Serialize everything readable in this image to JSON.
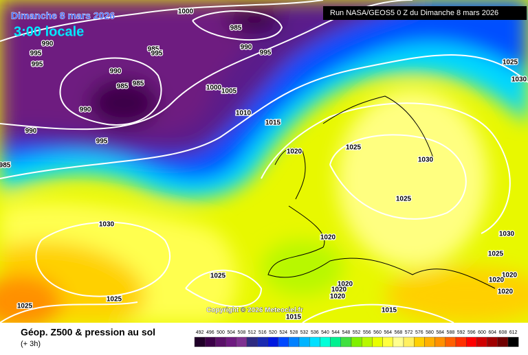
{
  "header": {
    "date": "Dimanche 8 mars 2026",
    "time": "3:00 locale",
    "run": "Run NASA/GEOS5 0 Z du Dimanche 8 mars 2026"
  },
  "isobar_labels": [
    "1000",
    "985",
    "990",
    "995",
    "985",
    "995",
    "990",
    "995",
    "995",
    "990",
    "985",
    "985",
    "1000",
    "1005",
    "990",
    "1010",
    "1015",
    "990",
    "995",
    "1025",
    "1030",
    "1025",
    "1020",
    "985",
    "1030",
    "1025",
    "1030",
    "1030",
    "1020",
    "1025",
    "1025",
    "1020",
    "1020",
    "1020",
    "1020",
    "1020",
    "1020",
    "1025",
    "1025",
    "1015",
    "1015"
  ],
  "copyright": "Copyright © 2026 Meteociel.fr",
  "legend": {
    "title": "Géop. Z500 & pression au sol",
    "subtitle": "(+ 3h)",
    "ticks": [
      492,
      496,
      500,
      504,
      508,
      512,
      516,
      520,
      524,
      528,
      532,
      536,
      540,
      544,
      548,
      552,
      556,
      560,
      564,
      568,
      572,
      576,
      580,
      584,
      588,
      592,
      596,
      600,
      604,
      608,
      612
    ],
    "colors": [
      "#200028",
      "#3c0048",
      "#5a1068",
      "#6e1a80",
      "#7e3090",
      "#2e2a80",
      "#1a2ab0",
      "#0018e0",
      "#0048ff",
      "#0080ff",
      "#00b4ff",
      "#00e0ff",
      "#00ffd8",
      "#00f090",
      "#40e040",
      "#80f000",
      "#b8f800",
      "#e8ff00",
      "#ffff40",
      "#ffff90",
      "#fff060",
      "#ffd000",
      "#ffb000",
      "#ff9000",
      "#ff6000",
      "#ff3000",
      "#ff0000",
      "#d00000",
      "#a00000",
      "#700000",
      "#000000"
    ]
  }
}
